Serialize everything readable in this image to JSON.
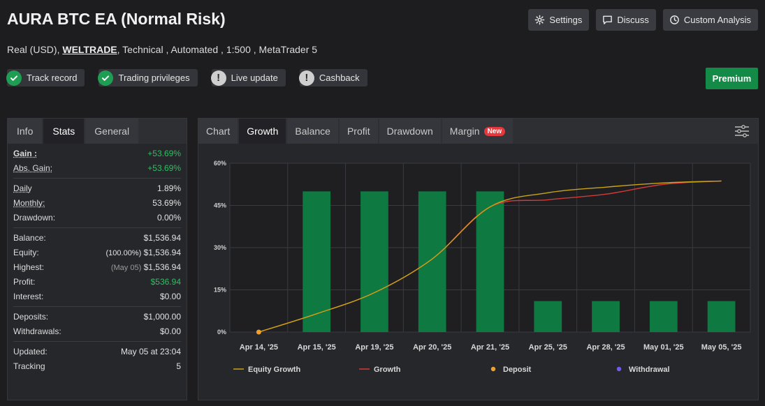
{
  "header": {
    "title": "AURA BTC EA (Normal Risk)",
    "subtitle_pre": "Real (USD),",
    "broker": "WELTRADE",
    "subtitle_post": ", Technical , Automated , 1:500 , MetaTrader 5"
  },
  "actions": {
    "settings": "Settings",
    "discuss": "Discuss",
    "custom_analysis": "Custom Analysis",
    "premium": "Premium"
  },
  "badges": [
    {
      "label": "Track record",
      "status": "ok"
    },
    {
      "label": "Trading privileges",
      "status": "ok"
    },
    {
      "label": "Live update",
      "status": "warn"
    },
    {
      "label": "Cashback",
      "status": "warn"
    }
  ],
  "left_tabs": [
    "Info",
    "Stats",
    "General"
  ],
  "left_active": "Stats",
  "stats": {
    "gain_label": "Gain :",
    "gain": "+53.69%",
    "abs_gain_label": "Abs. Gain:",
    "abs_gain": "+53.69%",
    "daily_label": "Daily",
    "daily": "1.89%",
    "monthly_label": "Monthly:",
    "monthly": "53.69%",
    "drawdown_label": "Drawdown:",
    "drawdown": "0.00%",
    "balance_label": "Balance:",
    "balance": "$1,536.94",
    "equity_label": "Equity:",
    "equity_pct": "(100.00%)",
    "equity": "$1,536.94",
    "highest_label": "Highest:",
    "highest_date": "(May 05)",
    "highest": "$1,536.94",
    "profit_label": "Profit:",
    "profit": "$536.94",
    "interest_label": "Interest:",
    "interest": "$0.00",
    "deposits_label": "Deposits:",
    "deposits": "$1,000.00",
    "withdrawals_label": "Withdrawals:",
    "withdrawals": "$0.00",
    "updated_label": "Updated:",
    "updated": "May 05 at 23:04",
    "tracking_label": "Tracking",
    "tracking": "5"
  },
  "chart_tabs": [
    "Chart",
    "Growth",
    "Balance",
    "Profit",
    "Drawdown",
    "Margin"
  ],
  "chart_active": "Growth",
  "new_badge": "New",
  "colors": {
    "accent_green": "#138a45",
    "bar_green": "#0e7a42",
    "equity_line": "#c9a418",
    "growth_line": "#d23a3a",
    "deposit": "#f0a030",
    "withdrawal": "#6e5cf0",
    "positive": "#2ebf62"
  },
  "chart_data": {
    "type": "bar",
    "categories": [
      "Apr 14, '25",
      "Apr 15, '25",
      "Apr 19, '25",
      "Apr 20, '25",
      "Apr 21, '25",
      "Apr 25, '25",
      "Apr 28, '25",
      "May 01, '25",
      "May 05, '25"
    ],
    "series": [
      {
        "name": "Growth",
        "kind": "bar",
        "values": [
          0,
          50,
          50,
          50,
          50,
          11,
          11,
          11,
          11
        ]
      },
      {
        "name": "Equity Growth",
        "kind": "line",
        "values": [
          0,
          6.5,
          14,
          26,
          44.5,
          49.5,
          51.5,
          53,
          53.7
        ]
      },
      {
        "name": "Growth",
        "kind": "line",
        "values": [
          0,
          6.5,
          14,
          26,
          44.5,
          47,
          49,
          52.5,
          53.7
        ]
      }
    ],
    "deposit_points": [
      {
        "x": "Apr 14, '25",
        "y": 0
      }
    ],
    "yticks": [
      "0%",
      "15%",
      "30%",
      "45%",
      "60%"
    ],
    "ylim": [
      0,
      60
    ],
    "grid": true,
    "legend": [
      {
        "label": "Equity Growth",
        "type": "line",
        "color_key": "equity_line"
      },
      {
        "label": "Growth",
        "type": "line",
        "color_key": "growth_line"
      },
      {
        "label": "Deposit",
        "type": "dot",
        "color_key": "deposit"
      },
      {
        "label": "Withdrawal",
        "type": "dot",
        "color_key": "withdrawal"
      }
    ],
    "legend_position": "bottom"
  }
}
